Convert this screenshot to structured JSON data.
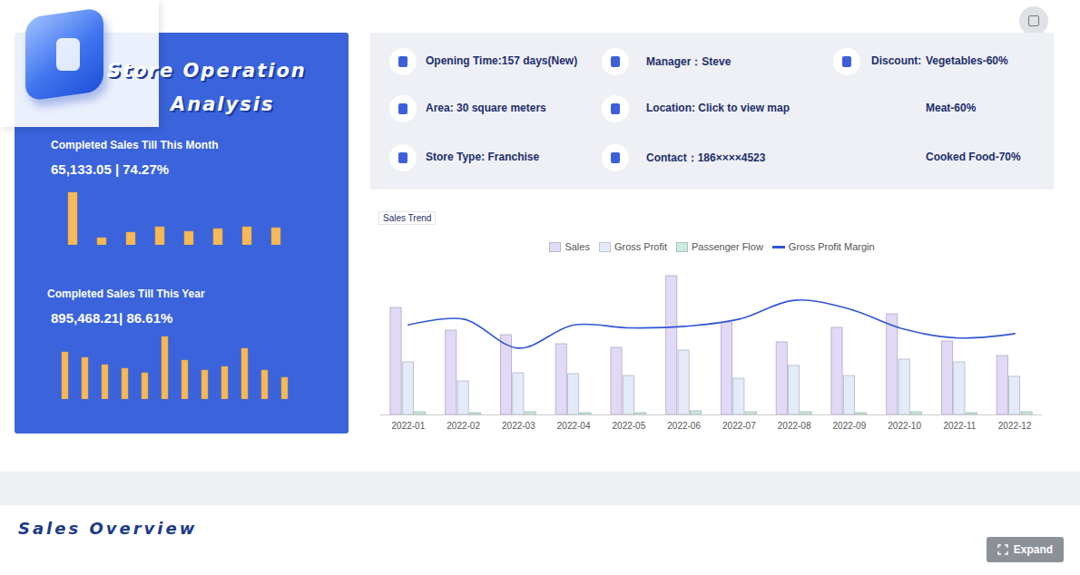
{
  "header": {
    "title_lines": [
      "Store Operation",
      "Analysis"
    ]
  },
  "info": {
    "items": [
      "Opening Time:157 days(New)",
      "Area: 30 square meters",
      "Store Type: Franchise",
      "Manager：Steve",
      "Location: Click to view map",
      "Contact：186××××4523"
    ],
    "discount": {
      "label": "Discount:",
      "values": [
        "Vegetables-60%",
        "Meat-60%",
        "Cooked Food-70%"
      ]
    }
  },
  "chart_data": [
    {
      "type": "bar",
      "title": "Completed Sales Till This Month",
      "subtitle": "65,133.05 | 74.27%",
      "values": [
        58,
        8,
        14,
        20,
        15,
        18,
        20,
        19
      ],
      "color": "#f7b955",
      "ylim": [
        0,
        60
      ],
      "tick_labels": false,
      "grid": false
    },
    {
      "type": "bar",
      "title": "Completed Sales Till This Year",
      "subtitle": "895,468.21| 86.61%",
      "values": [
        52,
        46,
        38,
        34,
        29,
        69,
        43,
        32,
        36,
        56,
        32,
        24
      ],
      "color": "#f7b955",
      "ylim": [
        0,
        70
      ],
      "tick_labels": false,
      "grid": false
    },
    {
      "type": "bar",
      "title": "Sales Trend",
      "categories": [
        "2022-01",
        "2022-02",
        "2022-03",
        "2022-04",
        "2022-05",
        "2022-06",
        "2022-07",
        "2022-08",
        "2022-09",
        "2022-10",
        "2022-11",
        "2022-12"
      ],
      "series": [
        {
          "name": "Sales",
          "type": "bar",
          "color": "#e2d9f7",
          "values": [
            118,
            93,
            88,
            78,
            74,
            153,
            102,
            80,
            96,
            111,
            81,
            65
          ]
        },
        {
          "name": "Gross Profit",
          "type": "bar",
          "color": "#e3ebfb",
          "values": [
            58,
            37,
            46,
            45,
            43,
            71,
            40,
            54,
            43,
            61,
            58,
            42
          ]
        },
        {
          "name": "Passenger Flow",
          "type": "bar",
          "color": "#cdeadf",
          "values": [
            3,
            2,
            3,
            2,
            2,
            4,
            3,
            3,
            2,
            3,
            2,
            3
          ]
        },
        {
          "name": "Gross Profit Margin",
          "type": "line",
          "axis": "y2",
          "color": "#2f55d4",
          "values": [
            62,
            66,
            46,
            62,
            60,
            61,
            66,
            79,
            73,
            59,
            53,
            56
          ]
        }
      ],
      "ylim": [
        0,
        160
      ],
      "y2lim": [
        0,
        100
      ],
      "tick_labels": "x",
      "legend": "top",
      "grid": false
    }
  ],
  "footer": {
    "section_title": "Sales Overview",
    "button": "Expand"
  }
}
